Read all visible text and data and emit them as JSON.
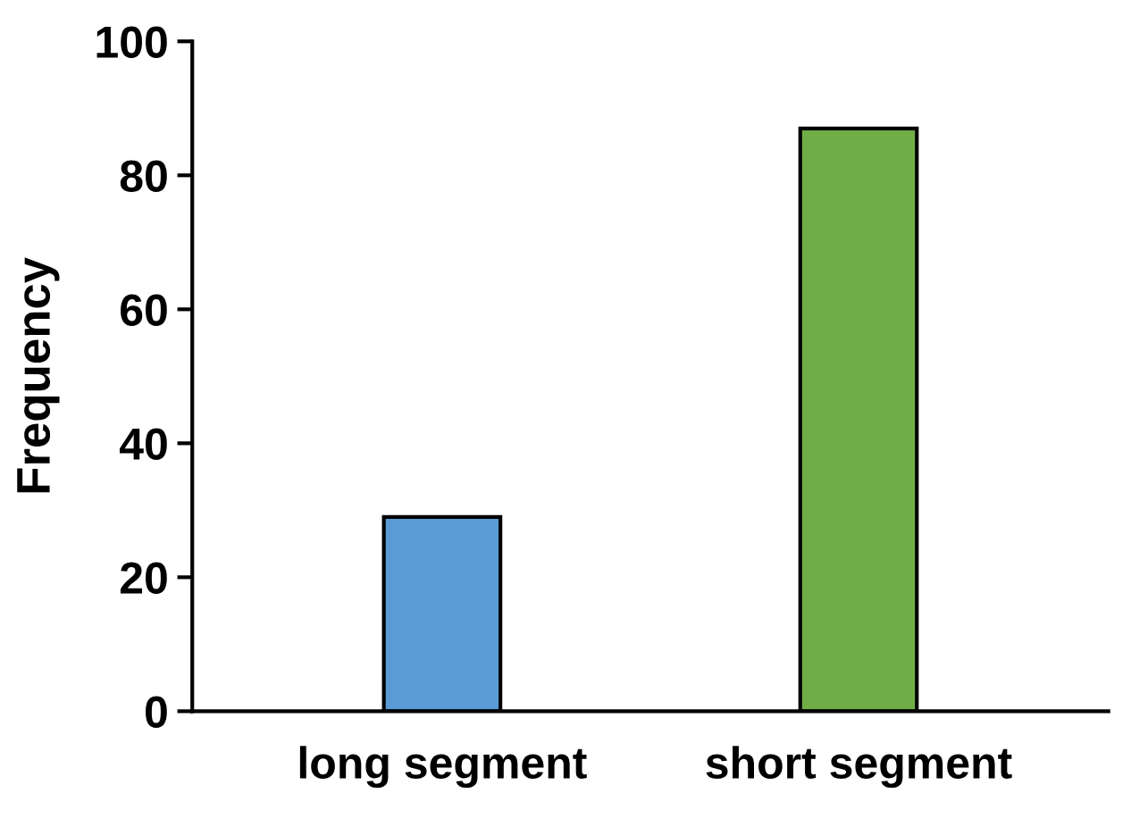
{
  "chart_data": {
    "type": "bar",
    "ylabel": "Frequency",
    "categories": [
      "long segment",
      "short segment"
    ],
    "values": [
      29,
      87
    ],
    "colors": [
      "#5b9bd5",
      "#70ad47"
    ],
    "ylim": [
      0,
      100
    ],
    "yticks": [
      0,
      20,
      40,
      60,
      80,
      100
    ],
    "grid": false,
    "legend": false
  }
}
